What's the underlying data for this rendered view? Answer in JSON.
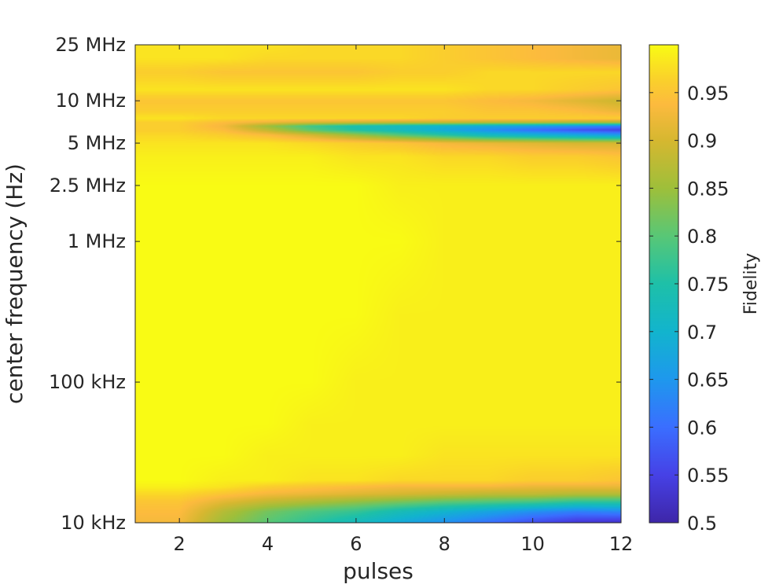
{
  "chart_data": {
    "type": "heatmap",
    "title": "",
    "xlabel": "pulses",
    "ylabel": "center frequency (Hz)",
    "colorbar_label": "Fidelity",
    "colormap": "parula",
    "x_scale": "linear",
    "y_scale": "log",
    "xlim": [
      1,
      12
    ],
    "ylim": [
      10000,
      25000000
    ],
    "clim": [
      0.5,
      1.0
    ],
    "x_ticks": [
      {
        "value": 2,
        "label": "2"
      },
      {
        "value": 4,
        "label": "4"
      },
      {
        "value": 6,
        "label": "6"
      },
      {
        "value": 8,
        "label": "8"
      },
      {
        "value": 10,
        "label": "10"
      },
      {
        "value": 12,
        "label": "12"
      }
    ],
    "y_ticks": [
      {
        "value": 10000,
        "label": "10 kHz"
      },
      {
        "value": 100000,
        "label": "100 kHz"
      },
      {
        "value": 1000000,
        "label": "1 MHz"
      },
      {
        "value": 2500000,
        "label": "2.5 MHz"
      },
      {
        "value": 5000000,
        "label": "5 MHz"
      },
      {
        "value": 10000000,
        "label": "10 MHz"
      },
      {
        "value": 25000000,
        "label": "25 MHz"
      }
    ],
    "colorbar_ticks": [
      {
        "value": 0.5,
        "label": "0.5"
      },
      {
        "value": 0.55,
        "label": "0.55"
      },
      {
        "value": 0.6,
        "label": "0.6"
      },
      {
        "value": 0.65,
        "label": "0.65"
      },
      {
        "value": 0.7,
        "label": "0.7"
      },
      {
        "value": 0.75,
        "label": "0.75"
      },
      {
        "value": 0.8,
        "label": "0.8"
      },
      {
        "value": 0.85,
        "label": "0.85"
      },
      {
        "value": 0.9,
        "label": "0.9"
      },
      {
        "value": 0.95,
        "label": "0.95"
      }
    ],
    "x": [
      1,
      2,
      3,
      4,
      5,
      6,
      7,
      8,
      9,
      10,
      11,
      12
    ],
    "y": [
      10000,
      12000,
      14000,
      16000,
      18000,
      20000,
      30000,
      50000,
      100000,
      300000,
      1000000,
      2500000,
      4000000,
      5000000,
      5700000,
      6200000,
      6600000,
      7000000,
      7500000,
      8500000,
      10000000,
      12000000,
      16000000,
      20000000,
      25000000
    ],
    "z": [
      [
        0.93,
        0.93,
        0.85,
        0.8,
        0.76,
        0.72,
        0.68,
        0.64,
        0.6,
        0.56,
        0.53,
        0.52
      ],
      [
        0.94,
        0.94,
        0.87,
        0.82,
        0.79,
        0.77,
        0.73,
        0.7,
        0.67,
        0.64,
        0.62,
        0.63
      ],
      [
        0.95,
        0.95,
        0.91,
        0.88,
        0.86,
        0.84,
        0.82,
        0.8,
        0.79,
        0.78,
        0.76,
        0.76
      ],
      [
        0.97,
        0.97,
        0.95,
        0.93,
        0.92,
        0.91,
        0.9,
        0.89,
        0.88,
        0.88,
        0.87,
        0.87
      ],
      [
        0.99,
        0.99,
        0.98,
        0.96,
        0.95,
        0.94,
        0.93,
        0.93,
        0.93,
        0.92,
        0.92,
        0.92
      ],
      [
        1.0,
        1.0,
        0.99,
        0.99,
        0.98,
        0.98,
        0.97,
        0.97,
        0.97,
        0.96,
        0.96,
        0.95
      ],
      [
        1.0,
        1.0,
        1.0,
        0.99,
        0.99,
        0.99,
        0.99,
        0.98,
        0.98,
        0.98,
        0.98,
        0.98
      ],
      [
        1.0,
        1.0,
        1.0,
        1.0,
        0.99,
        0.99,
        0.99,
        0.99,
        0.99,
        0.99,
        0.99,
        0.99
      ],
      [
        1.0,
        1.0,
        1.0,
        1.0,
        1.0,
        0.99,
        0.99,
        0.99,
        0.99,
        0.99,
        0.99,
        0.99
      ],
      [
        1.0,
        1.0,
        1.0,
        1.0,
        1.0,
        1.0,
        0.99,
        0.99,
        0.99,
        0.99,
        0.99,
        0.99
      ],
      [
        1.0,
        1.0,
        1.0,
        1.0,
        1.0,
        1.0,
        1.0,
        0.99,
        0.99,
        0.99,
        0.99,
        0.99
      ],
      [
        1.0,
        1.0,
        1.0,
        1.0,
        1.0,
        1.0,
        0.99,
        0.99,
        0.99,
        0.99,
        0.99,
        0.99
      ],
      [
        0.99,
        0.99,
        0.99,
        0.99,
        0.99,
        0.98,
        0.98,
        0.97,
        0.97,
        0.96,
        0.96,
        0.95
      ],
      [
        0.98,
        0.98,
        0.98,
        0.98,
        0.97,
        0.96,
        0.95,
        0.93,
        0.92,
        0.91,
        0.9,
        0.9
      ],
      [
        0.97,
        0.97,
        0.96,
        0.94,
        0.9,
        0.85,
        0.8,
        0.76,
        0.72,
        0.7,
        0.68,
        0.66
      ],
      [
        0.96,
        0.96,
        0.94,
        0.88,
        0.8,
        0.75,
        0.72,
        0.68,
        0.64,
        0.6,
        0.57,
        0.55
      ],
      [
        0.96,
        0.96,
        0.93,
        0.85,
        0.78,
        0.74,
        0.72,
        0.7,
        0.68,
        0.66,
        0.64,
        0.62
      ],
      [
        0.96,
        0.96,
        0.94,
        0.92,
        0.9,
        0.89,
        0.88,
        0.88,
        0.87,
        0.87,
        0.86,
        0.86
      ],
      [
        0.98,
        0.98,
        0.97,
        0.97,
        0.97,
        0.97,
        0.97,
        0.96,
        0.96,
        0.96,
        0.96,
        0.96
      ],
      [
        0.96,
        0.96,
        0.96,
        0.96,
        0.96,
        0.96,
        0.96,
        0.96,
        0.95,
        0.95,
        0.94,
        0.92
      ],
      [
        0.95,
        0.95,
        0.95,
        0.95,
        0.95,
        0.95,
        0.95,
        0.95,
        0.94,
        0.93,
        0.91,
        0.89
      ],
      [
        0.98,
        0.98,
        0.98,
        0.98,
        0.98,
        0.98,
        0.98,
        0.98,
        0.97,
        0.97,
        0.96,
        0.95
      ],
      [
        0.96,
        0.96,
        0.95,
        0.95,
        0.95,
        0.95,
        0.96,
        0.96,
        0.97,
        0.97,
        0.97,
        0.97
      ],
      [
        0.98,
        0.98,
        0.98,
        0.97,
        0.97,
        0.97,
        0.97,
        0.96,
        0.95,
        0.94,
        0.93,
        0.92
      ],
      [
        0.98,
        0.98,
        0.98,
        0.98,
        0.97,
        0.97,
        0.97,
        0.96,
        0.95,
        0.94,
        0.93,
        0.92
      ]
    ]
  }
}
